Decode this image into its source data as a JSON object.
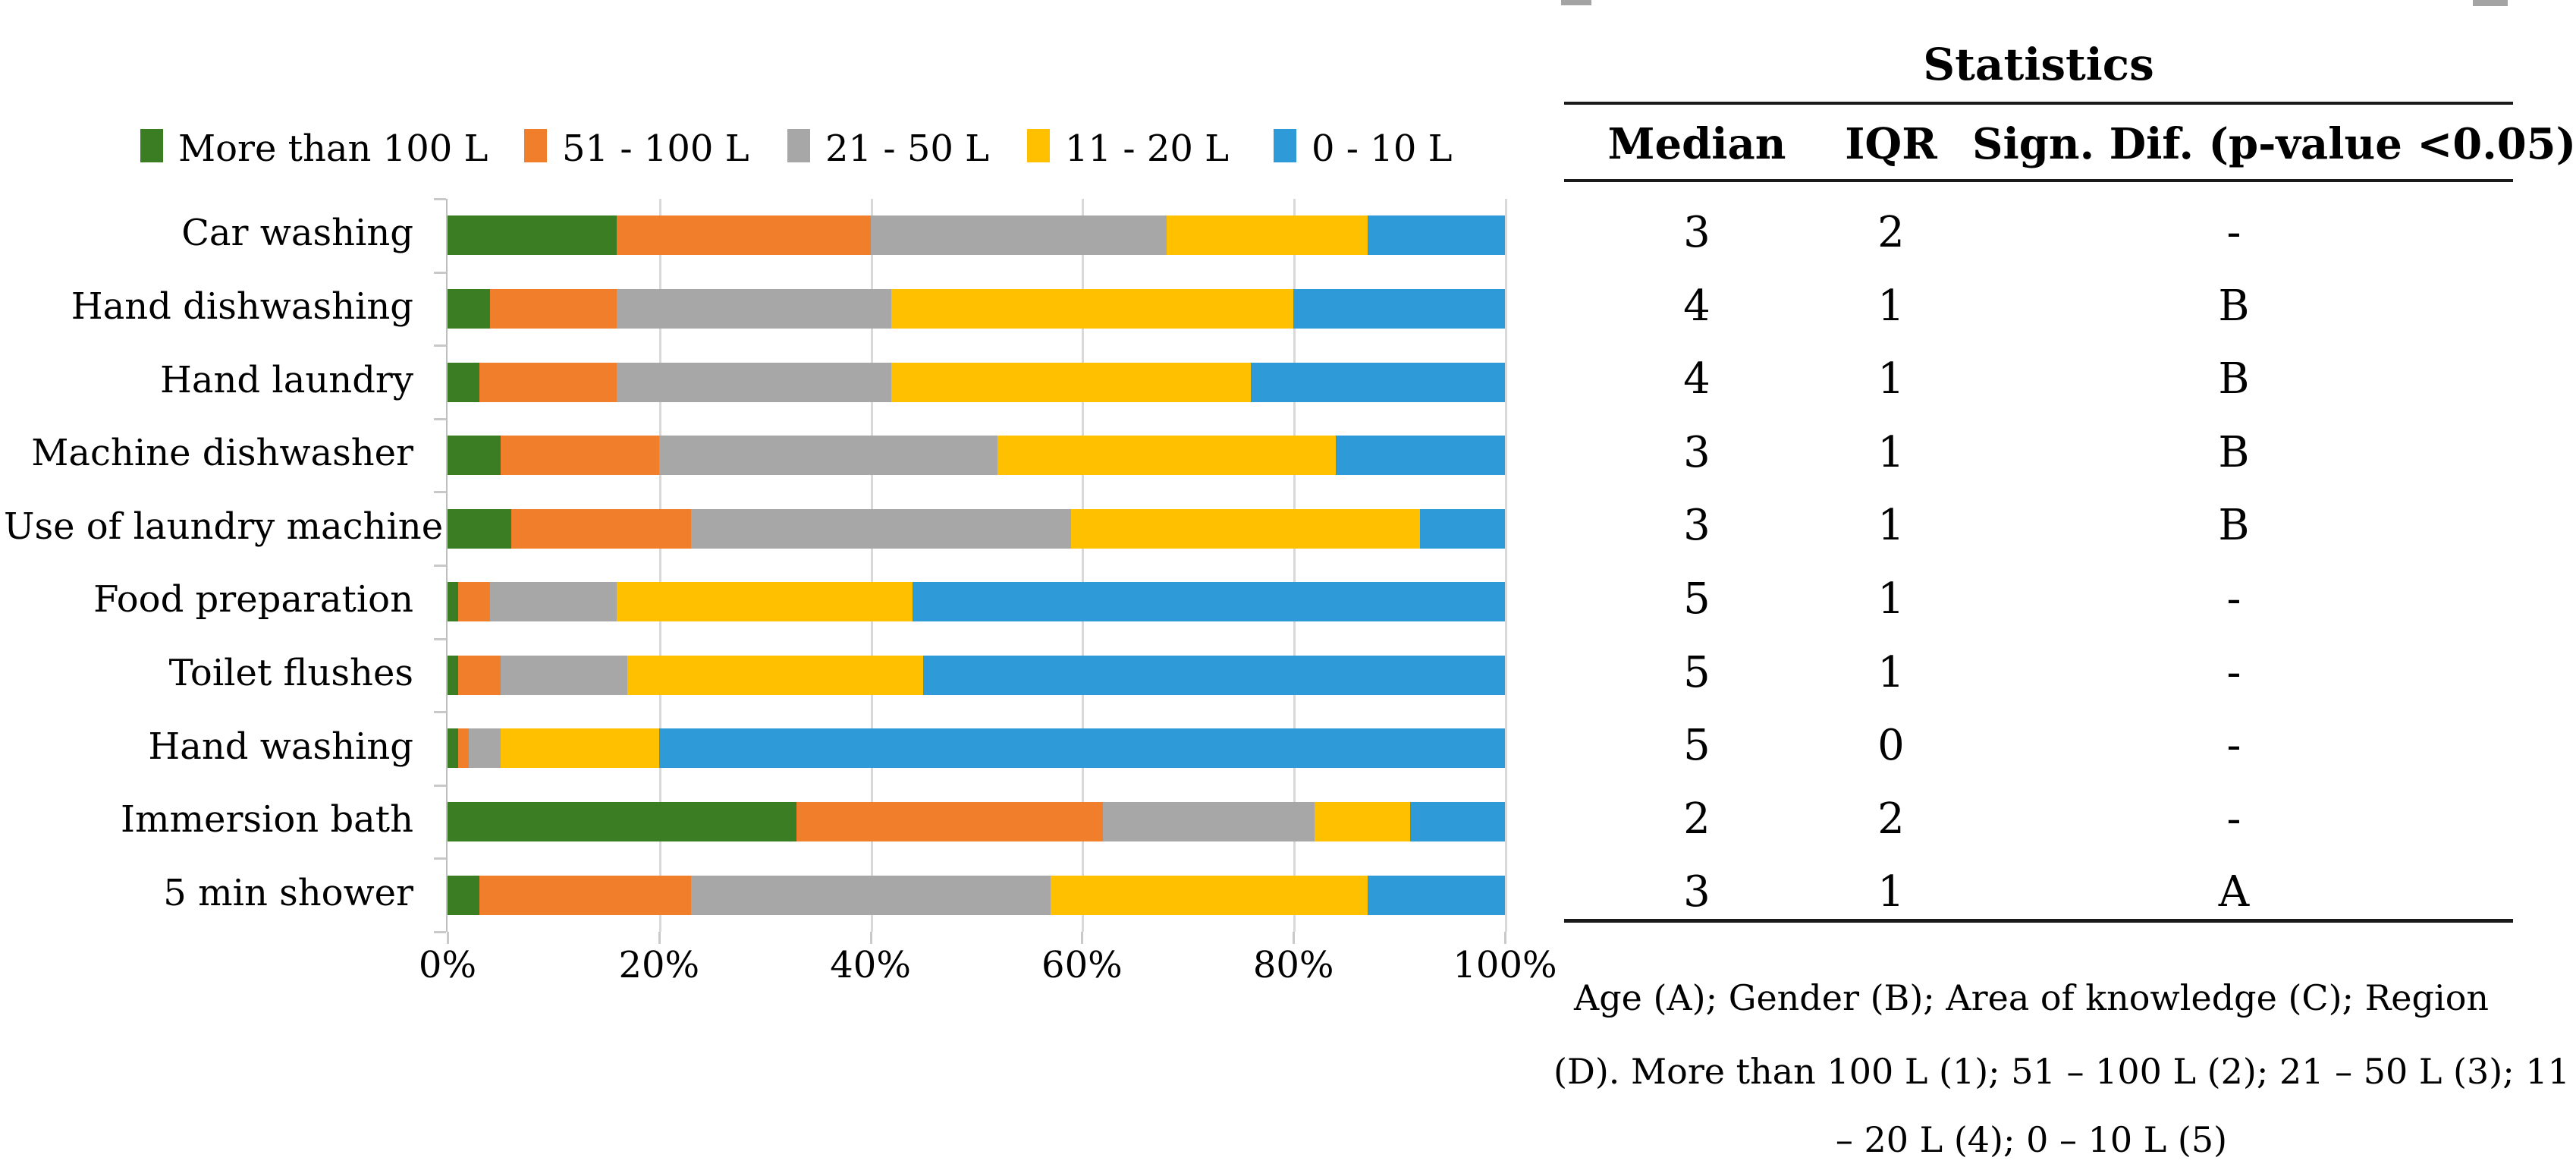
{
  "chart_data": {
    "type": "bar",
    "orientation": "horizontal",
    "stacked": true,
    "value_unit": "percent",
    "categories": [
      "Car washing",
      "Hand dishwashing",
      "Hand laundry",
      "Machine dishwasher",
      "Use of laundry machine",
      "Food preparation",
      "Toilet flushes",
      "Hand washing",
      "Immersion bath",
      "5 min shower"
    ],
    "series": [
      {
        "name": "More than 100 L",
        "color": "#3B7D23",
        "values": [
          16,
          4,
          3,
          5,
          6,
          1,
          1,
          1,
          33,
          3
        ]
      },
      {
        "name": "51 - 100 L",
        "color": "#F07E2B",
        "values": [
          24,
          12,
          13,
          15,
          17,
          3,
          4,
          1,
          29,
          20
        ]
      },
      {
        "name": "21 - 50 L",
        "color": "#A7A7A7",
        "values": [
          28,
          26,
          26,
          32,
          36,
          12,
          12,
          3,
          20,
          34
        ]
      },
      {
        "name": "11 - 20 L",
        "color": "#FFC000",
        "values": [
          19,
          38,
          34,
          32,
          33,
          28,
          28,
          15,
          9,
          30
        ]
      },
      {
        "name": "0 - 10 L",
        "color": "#2E9AD7",
        "values": [
          13,
          20,
          24,
          16,
          8,
          56,
          55,
          80,
          9,
          13
        ]
      }
    ],
    "x_axis": {
      "min": 0,
      "max": 100,
      "tick_labels": [
        "0%",
        "20%",
        "40%",
        "60%",
        "80%",
        "100%"
      ]
    },
    "legend_position": "top",
    "grid": true
  },
  "stats_table": {
    "title": "Statistics",
    "columns": [
      "Median",
      "IQR",
      "Sign. Dif. (p-value <0.05)"
    ],
    "rows": [
      [
        "3",
        "2",
        "-"
      ],
      [
        "4",
        "1",
        "B"
      ],
      [
        "4",
        "1",
        "B"
      ],
      [
        "3",
        "1",
        "B"
      ],
      [
        "3",
        "1",
        "B"
      ],
      [
        "5",
        "1",
        "-"
      ],
      [
        "5",
        "1",
        "-"
      ],
      [
        "5",
        "0",
        "-"
      ],
      [
        "2",
        "2",
        "-"
      ],
      [
        "3",
        "1",
        "A"
      ]
    ]
  },
  "footnote_lines": [
    "Age (A); Gender (B); Area of knowledge (C); Region",
    "(D). More than 100 L (1); 51 – 100 L (2); 21 – 50 L (3); 11",
    "– 20 L (4); 0 – 10 L (5)"
  ]
}
